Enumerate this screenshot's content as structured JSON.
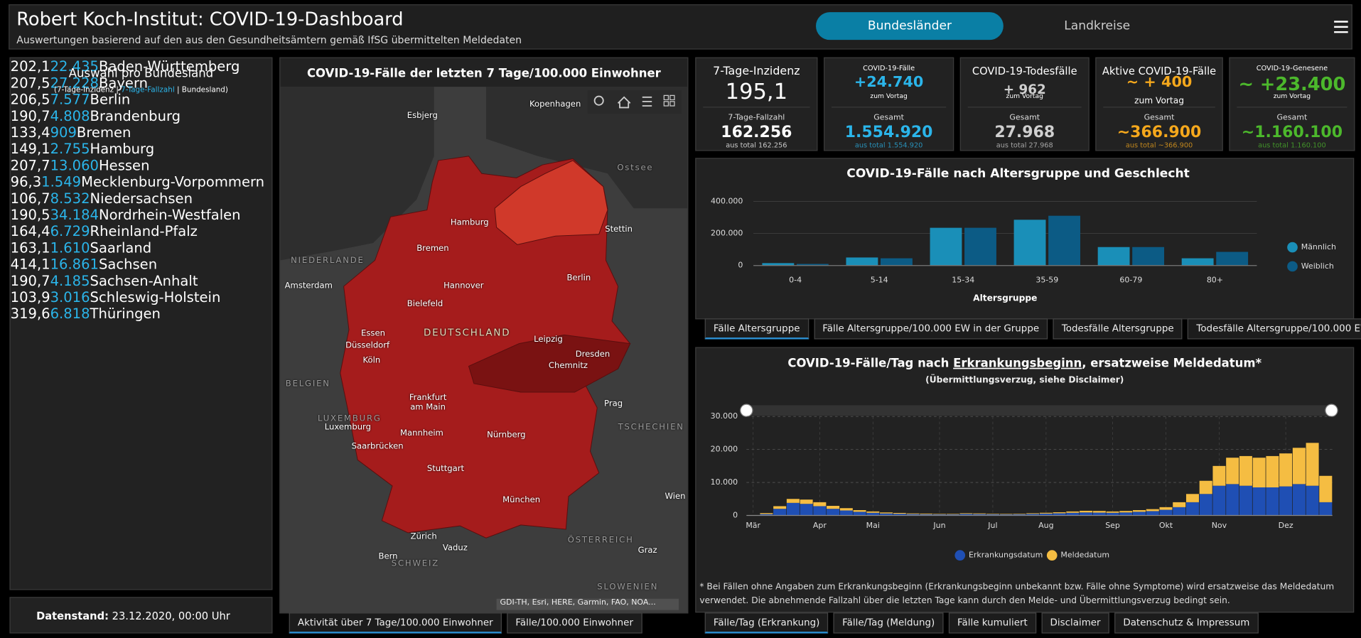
{
  "header": {
    "title": "Robert Koch-Institut: COVID-19-Dashboard",
    "subtitle": "Auswertungen basierend auf den aus den Gesundheitsämtern gemäß IfSG übermittelten Meldedaten"
  },
  "nav": {
    "items": [
      "Bundesländer",
      "Landkreise"
    ]
  },
  "states": {
    "title": "Auswahl pro Bundesland",
    "legend": [
      "(7-Tage-Inzidenz | ",
      "7-Tage-Fallzahl",
      " | Bundesland)"
    ],
    "rows": [
      [
        "202,1",
        "22.435",
        "Baden-Württemberg"
      ],
      [
        "207,5",
        "27.228",
        "Bayern"
      ],
      [
        "206,5",
        "7.577",
        "Berlin"
      ],
      [
        "190,7",
        "4.808",
        "Brandenburg"
      ],
      [
        "133,4",
        "909",
        "Bremen"
      ],
      [
        "149,1",
        "2.755",
        "Hamburg"
      ],
      [
        "207,7",
        "13.060",
        "Hessen"
      ],
      [
        "96,3",
        "1.549",
        "Mecklenburg-Vorpommern"
      ],
      [
        "106,7",
        "8.532",
        "Niedersachsen"
      ],
      [
        "190,5",
        "34.184",
        "Nordrhein-Westfalen"
      ],
      [
        "164,4",
        "6.729",
        "Rheinland-Pfalz"
      ],
      [
        "163,1",
        "1.610",
        "Saarland"
      ],
      [
        "414,1",
        "16.861",
        "Sachsen"
      ],
      [
        "190,7",
        "4.185",
        "Sachsen-Anhalt"
      ],
      [
        "103,9",
        "3.016",
        "Schleswig-Holstein"
      ],
      [
        "319,6",
        "6.818",
        "Thüringen"
      ]
    ]
  },
  "footer": {
    "label": "Datenstand:",
    "value": "23.12.2020, 00:00 Uhr"
  },
  "map": {
    "title": "COVID-19-Fälle der letzten 7 Tage/100.000 Einwohner",
    "labels": [
      "Esbjerg",
      "Kopenhagen",
      "Ostsee",
      "Stettin",
      "Hamburg",
      "Bremen",
      "Hannover",
      "Berlin",
      "Bielefeld",
      "Amsterdam",
      "NIEDERLANDE",
      "DEUTSCHLAND",
      "Leipzig",
      "Essen",
      "Düsseldorf",
      "Dresden",
      "Köln",
      "Chemnitz",
      "BELGIEN",
      "Frankfurt am Main",
      "Prag",
      "LUXEMBURG",
      "Luxemburg",
      "TSCHECHIEN",
      "Mannheim",
      "Nürnberg",
      "Saarbrücken",
      "Stuttgart",
      "Wien",
      "München",
      "Zürich",
      "ÖSTERREICH",
      "Vaduz",
      "Graz",
      "Bern",
      "SCHWEIZ",
      "SLOWENIEN"
    ],
    "attribution": "GDI-TH, Esri, HERE, Garmin, FAO, NOA...",
    "tabs": [
      "Aktivität über 7 Tage/100.000 Einwohner",
      "Fälle/100.000 Einwohner"
    ]
  },
  "kpis": [
    {
      "title": "7-Tage-Inzidenz",
      "value": "195,1",
      "total_label": "7-Tage-Fallzahl",
      "total": "162.256",
      "note": "aus total 162.256"
    },
    {
      "title": "COVID-19-Fälle",
      "value": "+24.740",
      "sub": "zum Vortag",
      "total_label": "Gesamt",
      "total": "1.554.920",
      "note": "aus total 1.554.920"
    },
    {
      "title": "COVID-19-Todesfälle",
      "value": "+ 962",
      "sub": "zum Vortag",
      "total_label": "Gesamt",
      "total": "27.968",
      "note": "aus total 27.968"
    },
    {
      "title": "Aktive COVID-19-Fälle",
      "value": "~ + 400",
      "sub": "zum Vortag",
      "total_label": "Gesamt",
      "total": "~366.900",
      "note": "aus total ~366.900"
    },
    {
      "title": "COVID-19-Genesene",
      "value": "~ +23.400",
      "sub": "zum Vortag",
      "total_label": "Gesamt",
      "total": "~1.160.100",
      "note": "aus total 1.160.100"
    }
  ],
  "age_tabs": [
    "Fälle Altersgruppe",
    "Fälle Altersgruppe/100.000 EW in der Gruppe",
    "Todesfälle Altersgruppe",
    "Todesfälle Altersgruppe/100.000 EW in der Gruppe"
  ],
  "time_tabs": [
    "Fälle/Tag (Erkrankung)",
    "Fälle/Tag (Meldung)",
    "Fälle kumuliert",
    "Disclaimer",
    "Datenschutz & Impressum"
  ],
  "chart_data": [
    {
      "type": "bar",
      "title": "COVID-19-Fälle nach Altersgruppe und Geschlecht",
      "x_label": "Altersgruppe",
      "categories": [
        "0-4",
        "5-14",
        "15-34",
        "35-59",
        "60-79",
        "80+"
      ],
      "series": [
        {
          "name": "Männlich",
          "color": "#1a8fb8",
          "values": [
            15000,
            50000,
            235000,
            285000,
            115000,
            45000
          ]
        },
        {
          "name": "Weiblich",
          "color": "#0c5b85",
          "values": [
            10000,
            45000,
            235000,
            310000,
            115000,
            85000
          ]
        }
      ],
      "ylim": [
        0,
        400000
      ],
      "yticks": [
        0,
        {
          "value": 200000,
          "label": "200.000"
        },
        {
          "value": 400000,
          "label": "400.000"
        }
      ],
      "grid": true,
      "legend": "right"
    },
    {
      "type": "stacked_bar",
      "title": [
        "COVID-19-Fälle/Tag nach ",
        "Erkrankungsbeginn",
        ", ersatzweise Meldedatum*"
      ],
      "subtitle": "(Übermittlungsverzug, siehe Disclaimer)",
      "footnote": "* Bei Fällen ohne Angaben zum Erkrankungsbeginn (Erkrankungsbeginn unbekannt bzw. Fälle ohne Symptome) wird ersatzweise das Meldedatum verwendet. Die abnehmende Fallzahl über die letzten Tage kann durch den Melde- und Übermittlungsverzug bedingt sein.",
      "categories": [
        "Mär",
        null,
        null,
        null,
        null,
        "Apr",
        null,
        null,
        null,
        "Mai",
        null,
        null,
        null,
        null,
        "Jun",
        null,
        null,
        null,
        "Jul",
        null,
        null,
        null,
        "Aug",
        null,
        null,
        null,
        null,
        "Sep",
        null,
        null,
        null,
        "Okt",
        null,
        null,
        null,
        "Nov",
        null,
        null,
        null,
        null,
        "Dez",
        null,
        null,
        null
      ],
      "series": [
        {
          "name": "Erkrankungsdatum",
          "color": "#1f4fb4",
          "values": [
            50,
            400,
            2000,
            3800,
            3500,
            2800,
            2000,
            1500,
            1100,
            800,
            600,
            500,
            400,
            350,
            300,
            300,
            450,
            400,
            350,
            300,
            350,
            450,
            550,
            650,
            800,
            900,
            850,
            800,
            900,
            1100,
            1300,
            1700,
            2500,
            4000,
            6500,
            9000,
            9500,
            9000,
            8500,
            8500,
            8800,
            9500,
            9000,
            4000
          ]
        },
        {
          "name": "Meldedatum",
          "color": "#f5bd42",
          "values": [
            50,
            300,
            800,
            1200,
            1300,
            1200,
            900,
            700,
            500,
            400,
            300,
            250,
            200,
            200,
            150,
            150,
            200,
            200,
            150,
            150,
            150,
            200,
            250,
            300,
            400,
            500,
            500,
            400,
            450,
            500,
            600,
            800,
            1500,
            2500,
            4000,
            6000,
            8000,
            9000,
            9000,
            9500,
            10000,
            11000,
            13000,
            8000
          ]
        }
      ],
      "ylim": [
        0,
        30000
      ],
      "yticks": [
        0,
        {
          "value": 10000,
          "label": "10.000"
        },
        {
          "value": 20000,
          "label": "20.000"
        },
        {
          "value": 30000,
          "label": "30.000"
        }
      ],
      "grid": true,
      "legend": "bottom"
    }
  ]
}
